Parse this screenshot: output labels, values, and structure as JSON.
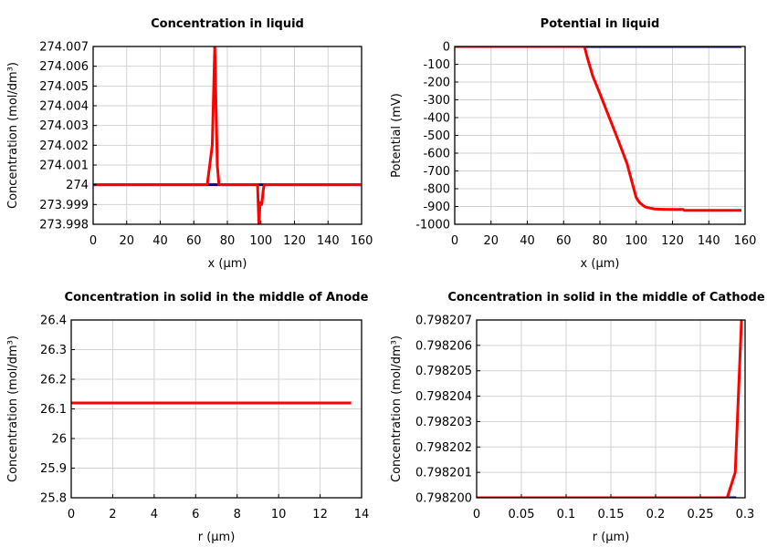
{
  "colors": {
    "series_red": "#ff0000",
    "series_blue": "#00007f",
    "grid": "#d3d3d3"
  },
  "chart_data": [
    {
      "type": "line",
      "title": "Concentration in liquid",
      "xlabel": "x (µm)",
      "ylabel": "Concentration (mol/dm³)",
      "xlim": [
        0,
        160
      ],
      "ylim": [
        273.998,
        274.007
      ],
      "xticks": [
        0,
        20,
        40,
        60,
        80,
        100,
        120,
        140,
        160
      ],
      "yticks": [
        273.998,
        273.999,
        274,
        274.001,
        274.002,
        274.003,
        274.004,
        274.005,
        274.006,
        274.007
      ],
      "xtick_labels": [
        "0",
        "20",
        "40",
        "60",
        "80",
        "100",
        "120",
        "140",
        "160"
      ],
      "ytick_labels": [
        "273.998",
        "273.999",
        "274",
        "274.001",
        "274.002",
        "274.003",
        "274.004",
        "274.005",
        "274.006",
        "274.007"
      ],
      "grid": true,
      "series": [
        {
          "color": "#00007f",
          "x": [
            0,
            160
          ],
          "y": [
            274,
            274
          ]
        },
        {
          "color": "#ff0000",
          "x": [
            0,
            68,
            71,
            72.5,
            74,
            75,
            98,
            98.8,
            99.5,
            100.5,
            101.5,
            102,
            160
          ],
          "y": [
            274,
            274,
            274.002,
            274.007,
            274.001,
            274,
            274,
            273.998,
            273.9991,
            273.999,
            273.9998,
            274,
            274
          ]
        }
      ]
    },
    {
      "type": "line",
      "title": "Potential in liquid",
      "xlabel": "x (µm)",
      "ylabel": "Potential (mV)",
      "xlim": [
        0,
        160
      ],
      "ylim": [
        -1000,
        0
      ],
      "xticks": [
        0,
        20,
        40,
        60,
        80,
        100,
        120,
        140,
        160
      ],
      "yticks": [
        -1000,
        -900,
        -800,
        -700,
        -600,
        -500,
        -400,
        -300,
        -200,
        -100,
        0
      ],
      "xtick_labels": [
        "0",
        "20",
        "40",
        "60",
        "80",
        "100",
        "120",
        "140",
        "160"
      ],
      "ytick_labels": [
        "-1000",
        "-900",
        "-800",
        "-700",
        "-600",
        "-500",
        "-400",
        "-300",
        "-200",
        "-100",
        "0"
      ],
      "grid": true,
      "series": [
        {
          "color": "#00007f",
          "x": [
            0,
            158
          ],
          "y": [
            0,
            0
          ]
        },
        {
          "color": "#ff0000",
          "x": [
            0,
            71.5,
            73,
            76,
            80,
            85,
            90,
            95,
            98,
            100,
            102,
            105,
            110,
            115,
            120,
            126,
            126.5,
            140,
            158
          ],
          "y": [
            0,
            0,
            -60,
            -165,
            -265,
            -395,
            -525,
            -660,
            -775,
            -850,
            -880,
            -903,
            -914,
            -916,
            -917,
            -917,
            -922,
            -922,
            -922
          ]
        }
      ]
    },
    {
      "type": "line",
      "title": "Concentration in solid in the middle of Anode",
      "xlabel": "r (µm)",
      "ylabel": "Concentration (mol/dm³)",
      "xlim": [
        0,
        14
      ],
      "ylim": [
        25.8,
        26.4
      ],
      "xticks": [
        0,
        2,
        4,
        6,
        8,
        10,
        12,
        14
      ],
      "yticks": [
        25.8,
        25.9,
        26,
        26.1,
        26.2,
        26.3,
        26.4
      ],
      "xtick_labels": [
        "0",
        "2",
        "4",
        "6",
        "8",
        "10",
        "12",
        "14"
      ],
      "ytick_labels": [
        "25.8",
        "25.9",
        "26",
        "26.1",
        "26.2",
        "26.3",
        "26.4"
      ],
      "grid": true,
      "series": [
        {
          "color": "#ff0000",
          "x": [
            0,
            13.5
          ],
          "y": [
            26.12,
            26.12
          ]
        }
      ]
    },
    {
      "type": "line",
      "title": "Concentration in solid in the middle of Cathode",
      "xlabel": "r (µm)",
      "ylabel": "Concentration (mol/dm³)",
      "xlim": [
        0,
        0.3
      ],
      "ylim": [
        0.7982,
        0.798207
      ],
      "xticks": [
        0,
        0.05,
        0.1,
        0.15,
        0.2,
        0.25,
        0.3
      ],
      "yticks": [
        0.7982,
        0.798201,
        0.798202,
        0.798203,
        0.798204,
        0.798205,
        0.798206,
        0.798207
      ],
      "xtick_labels": [
        "0",
        "0.05",
        "0.1",
        "0.15",
        "0.2",
        "0.25",
        "0.3"
      ],
      "ytick_labels": [
        "0.798200",
        "0.798201",
        "0.798202",
        "0.798203",
        "0.798204",
        "0.798205",
        "0.798206",
        "0.798207"
      ],
      "grid": true,
      "series": [
        {
          "color": "#00007f",
          "x": [
            0,
            0.29
          ],
          "y": [
            0.7982,
            0.7982
          ]
        },
        {
          "color": "#ff0000",
          "x": [
            0,
            0.28,
            0.289,
            0.296
          ],
          "y": [
            0.7982,
            0.7982,
            0.798201,
            0.798207
          ]
        }
      ]
    }
  ]
}
